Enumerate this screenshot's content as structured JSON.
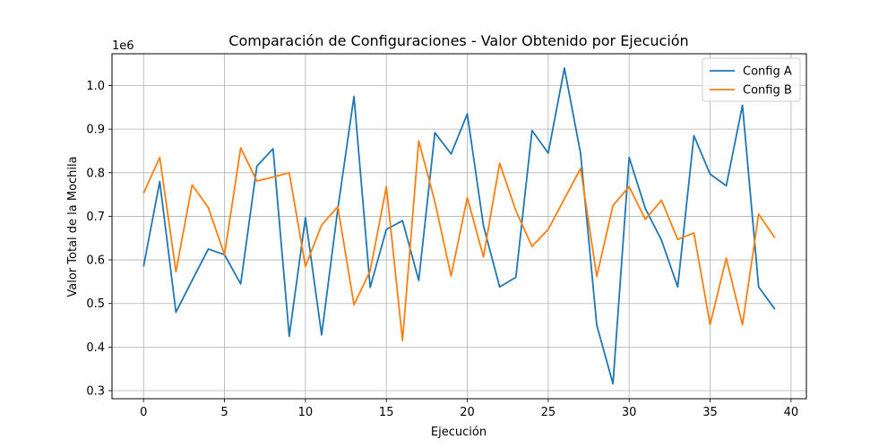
{
  "chart_data": {
    "type": "line",
    "title": "Comparación de Configuraciones - Valor Obtenido por Ejecución",
    "xlabel": "Ejecución",
    "ylabel": "Valor Total de la Mochila",
    "y_offset_label": "1e6",
    "xlim": [
      -1.95,
      40.95
    ],
    "ylim": [
      0.2815,
      1.073
    ],
    "x_ticks": [
      0,
      5,
      10,
      15,
      20,
      25,
      30,
      35,
      40
    ],
    "x_tick_labels": [
      "0",
      "5",
      "10",
      "15",
      "20",
      "25",
      "30",
      "35",
      "40"
    ],
    "y_ticks": [
      0.3,
      0.4,
      0.5,
      0.6,
      0.7,
      0.8,
      0.9,
      1.0
    ],
    "y_tick_labels": [
      "0.3",
      "0.4",
      "0.5",
      "0.6",
      "0.7",
      "0.8",
      "0.9",
      "1.0"
    ],
    "grid": true,
    "legend": "top-right",
    "x": [
      0,
      1,
      2,
      3,
      4,
      5,
      6,
      7,
      8,
      9,
      10,
      11,
      12,
      13,
      14,
      15,
      16,
      17,
      18,
      19,
      20,
      21,
      22,
      23,
      24,
      25,
      26,
      27,
      28,
      29,
      30,
      31,
      32,
      33,
      34,
      35,
      36,
      37,
      38,
      39
    ],
    "series": [
      {
        "name": "Config A",
        "color": "#1f77b4",
        "values": [
          0.585,
          0.78,
          0.48,
          0.553,
          0.625,
          0.612,
          0.545,
          0.815,
          0.855,
          0.425,
          0.697,
          0.428,
          0.717,
          0.975,
          0.537,
          0.67,
          0.69,
          0.553,
          0.892,
          0.843,
          0.935,
          0.678,
          0.538,
          0.56,
          0.897,
          0.845,
          1.04,
          0.844,
          0.45,
          0.316,
          0.835,
          0.718,
          0.645,
          0.538,
          0.885,
          0.797,
          0.77,
          0.955,
          0.538,
          0.487
        ]
      },
      {
        "name": "Config B",
        "color": "#ff7f0e",
        "values": [
          0.753,
          0.835,
          0.573,
          0.772,
          0.72,
          0.612,
          0.857,
          0.781,
          0.79,
          0.8,
          0.585,
          0.68,
          0.722,
          0.497,
          0.575,
          0.768,
          0.415,
          0.873,
          0.733,
          0.563,
          0.743,
          0.607,
          0.822,
          0.713,
          0.631,
          0.67,
          0.74,
          0.81,
          0.562,
          0.725,
          0.768,
          0.693,
          0.737,
          0.647,
          0.662,
          0.452,
          0.604,
          0.451,
          0.705,
          0.651
        ]
      }
    ]
  }
}
